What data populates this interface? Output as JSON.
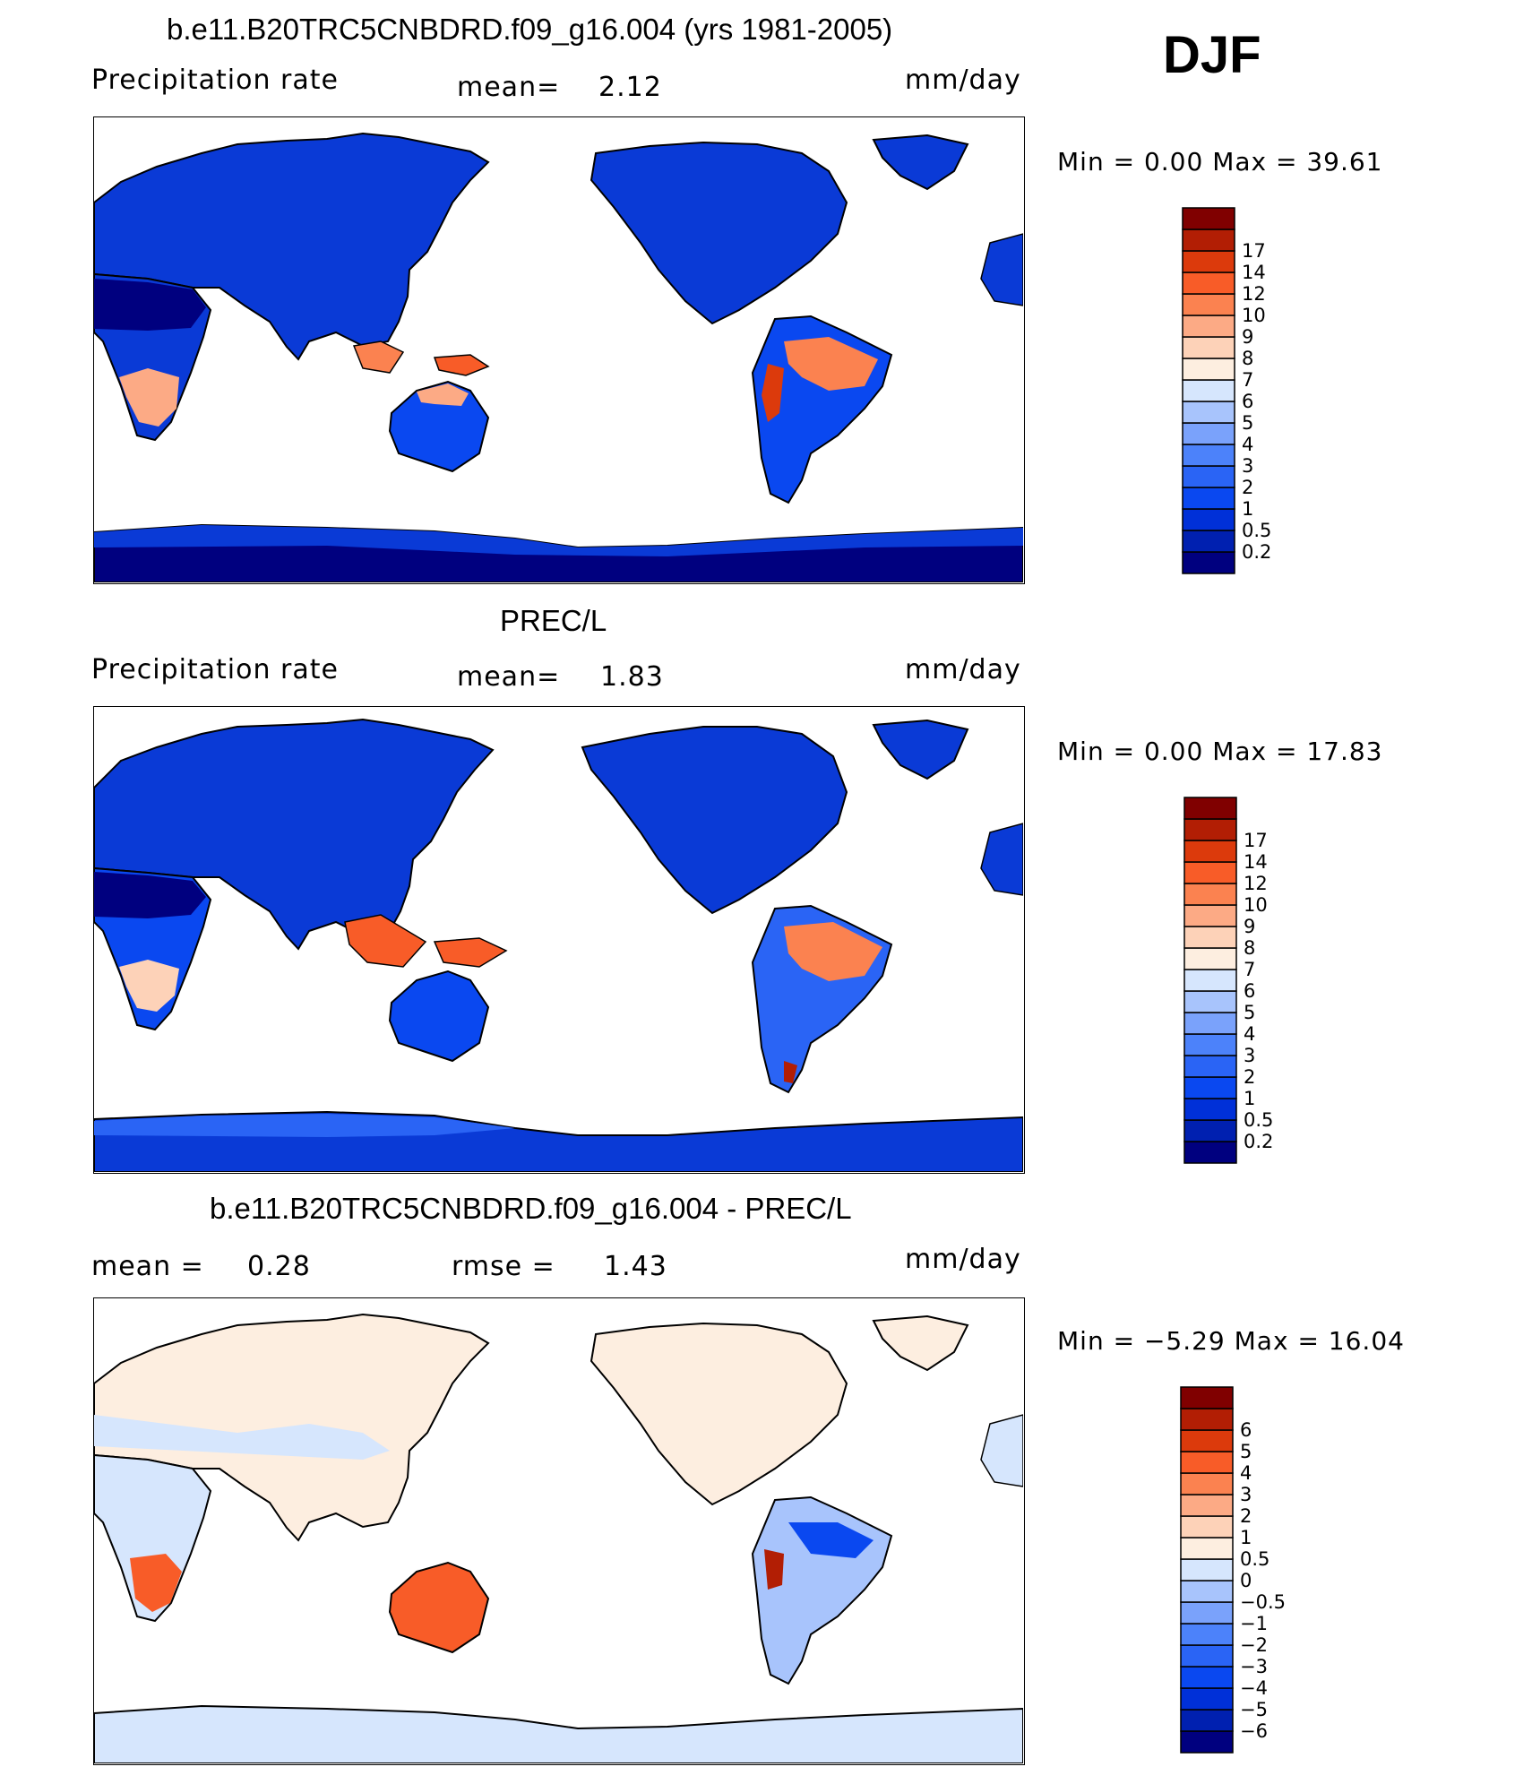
{
  "season": "DJF",
  "panels": [
    {
      "title": "b.e11.B20TRC5CNBDRD.f09_g16.004 (yrs 1981-2005)",
      "left_label": "Precipitation  rate",
      "mid_label": "mean=",
      "mid_value": "2.12",
      "right_label": "mm/day",
      "minmax": "Min  =    0.00  Max  =    39.61"
    },
    {
      "title": "PREC/L",
      "left_label": "Precipitation  rate",
      "mid_label": "mean=",
      "mid_value": "1.83",
      "right_label": "mm/day",
      "minmax": "Min  =    0.00  Max  =    17.83"
    },
    {
      "title": "b.e11.B20TRC5CNBDRD.f09_g16.004 - PREC/L",
      "left_label": "mean  =",
      "left_value": "0.28",
      "mid_label": "rmse  =",
      "mid_value": "1.43",
      "right_label": "mm/day",
      "minmax": "Min  =   −5.29  Max  =    16.04"
    }
  ],
  "chart_data": [
    {
      "type": "heatmap",
      "title": "b.e11.B20TRC5CNBDRD.f09_g16.004 (yrs 1981-2005)",
      "variable": "Precipitation  rate",
      "units": "mm/day",
      "mean": 2.12,
      "min": 0.0,
      "max": 39.61,
      "colorbar_levels": [
        "0.2",
        "0.5",
        "1",
        "2",
        "3",
        "4",
        "5",
        "6",
        "7",
        "8",
        "9",
        "10",
        "12",
        "14",
        "17"
      ],
      "colors": [
        "#00007f",
        "#0020b0",
        "#0030d8",
        "#0a48f0",
        "#2a64f5",
        "#4c82fa",
        "#7aa2fb",
        "#a8c4fc",
        "#d6e6fd",
        "#fdeee0",
        "#fdd2b8",
        "#fcaa85",
        "#fb8250",
        "#f85c28",
        "#dc3a0c",
        "#b21e04",
        "#800000"
      ]
    },
    {
      "type": "heatmap",
      "title": "PREC/L",
      "variable": "Precipitation  rate",
      "units": "mm/day",
      "mean": 1.83,
      "min": 0.0,
      "max": 17.83,
      "colorbar_levels": [
        "0.2",
        "0.5",
        "1",
        "2",
        "3",
        "4",
        "5",
        "6",
        "7",
        "8",
        "9",
        "10",
        "12",
        "14",
        "17"
      ],
      "colors": [
        "#00007f",
        "#0020b0",
        "#0030d8",
        "#0a48f0",
        "#2a64f5",
        "#4c82fa",
        "#7aa2fb",
        "#a8c4fc",
        "#d6e6fd",
        "#fdeee0",
        "#fdd2b8",
        "#fcaa85",
        "#fb8250",
        "#f85c28",
        "#dc3a0c",
        "#b21e04",
        "#800000"
      ]
    },
    {
      "type": "heatmap",
      "title": "b.e11.B20TRC5CNBDRD.f09_g16.004 - PREC/L",
      "units": "mm/day",
      "mean": 0.28,
      "rmse": 1.43,
      "min": -5.29,
      "max": 16.04,
      "colorbar_levels": [
        "−6",
        "−5",
        "−4",
        "−3",
        "−2",
        "−1",
        "−0.5",
        "0",
        "0.5",
        "1",
        "2",
        "3",
        "4",
        "5",
        "6"
      ],
      "colors": [
        "#00007f",
        "#0020b0",
        "#0030d8",
        "#0a48f0",
        "#2a64f5",
        "#4c82fa",
        "#7aa2fb",
        "#a8c4fc",
        "#d6e6fd",
        "#fdeee0",
        "#fdd2b8",
        "#fcaa85",
        "#fb8250",
        "#f85c28",
        "#dc3a0c",
        "#b21e04",
        "#800000"
      ]
    }
  ]
}
